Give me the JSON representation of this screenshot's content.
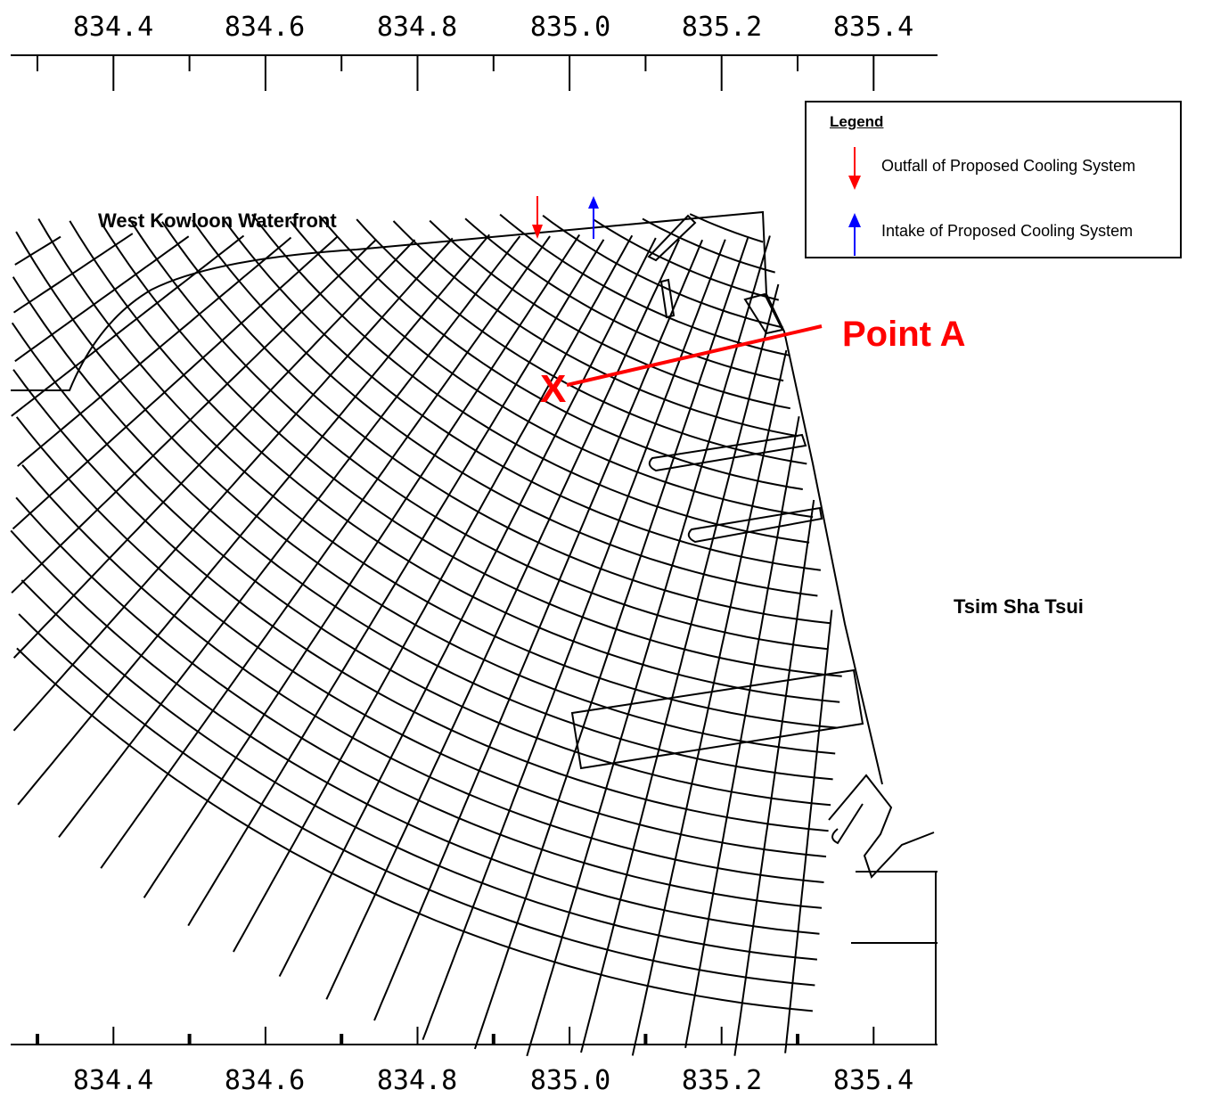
{
  "axis": {
    "top_ticks": [
      "834.4",
      "834.6",
      "834.8",
      "835.0",
      "835.2",
      "835.4"
    ],
    "bottom_ticks": [
      "834.4",
      "834.6",
      "834.8",
      "835.0",
      "835.2",
      "835.4"
    ]
  },
  "places": {
    "west_kowloon": "West Kowloon Waterfront",
    "tsim_sha_tsui": "Tsim Sha Tsui"
  },
  "point_a": {
    "label": "Point A",
    "marker": "X",
    "color": "#ff0000"
  },
  "legend": {
    "title": "Legend",
    "items": [
      {
        "label": "Outfall of Proposed Cooling System",
        "color": "#ff0000",
        "icon": "down-arrow-icon"
      },
      {
        "label": "Intake of Proposed Cooling System",
        "color": "#0000ff",
        "icon": "up-arrow-icon"
      }
    ]
  }
}
